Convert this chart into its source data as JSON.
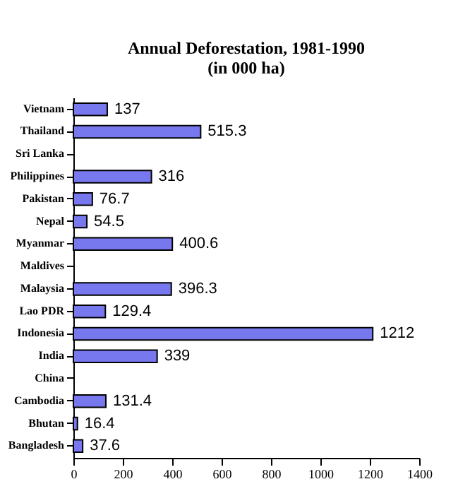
{
  "chart_data": {
    "type": "bar",
    "orientation": "horizontal",
    "title": [
      "Annual Deforestation, 1981-1990",
      "(in 000 ha)"
    ],
    "categories": [
      "Vietnam",
      "Thailand",
      "Sri Lanka",
      "Philippines",
      "Pakistan",
      "Nepal",
      "Myanmar",
      "Maldives",
      "Malaysia",
      "Lao PDR",
      "Indonesia",
      "India",
      "China",
      "Cambodia",
      "Bhutan",
      "Bangladesh"
    ],
    "values": [
      137,
      515.3,
      null,
      316,
      76.7,
      54.5,
      400.6,
      null,
      396.3,
      129.4,
      1212,
      339,
      null,
      131.4,
      16.4,
      37.6
    ],
    "color": "#7777ee",
    "xlim": [
      0,
      1400
    ],
    "xticks": [
      0,
      200,
      400,
      600,
      800,
      1000,
      1200,
      1400
    ],
    "data_labels": true,
    "grid": false
  }
}
